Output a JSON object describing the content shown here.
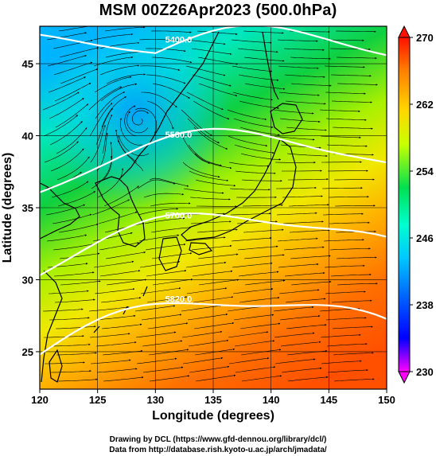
{
  "title": "MSM 00Z26Apr2023 (500.0hPa)",
  "x_axis": {
    "label": "Longitude (degrees)",
    "min": 120,
    "max": 150,
    "ticks": [
      "120",
      "125",
      "130",
      "135",
      "140",
      "145",
      "150"
    ]
  },
  "y_axis": {
    "label": "Latitude  (degrees)",
    "min": 22.4,
    "max": 47.6,
    "ticks": [
      "25",
      "30",
      "35",
      "40",
      "45"
    ]
  },
  "colorbar": {
    "min": 230,
    "max": 270,
    "ticks": [
      "230",
      "238",
      "246",
      "254",
      "262",
      "270"
    ],
    "colors": [
      "#ff00ff",
      "#0000ff",
      "#00a0ff",
      "#00ffd0",
      "#00e050",
      "#c8ff00",
      "#ffd800",
      "#ff8000",
      "#ff1000"
    ]
  },
  "contours": [
    {
      "label": "5400.0",
      "lat_at_130": 46.0
    },
    {
      "label": "5580.0",
      "lat_at_130": 39.4
    },
    {
      "label": "5700.0",
      "lat_at_130": 33.8
    },
    {
      "label": "5820.0",
      "lat_at_130": 28.0
    }
  ],
  "credits": {
    "line1": "Drawing by DCL (https://www.gfd-dennou.org/library/dcl/)",
    "line2": "Data from http://database.rish.kyoto-u.ac.jp/arch/jmadata/"
  }
}
